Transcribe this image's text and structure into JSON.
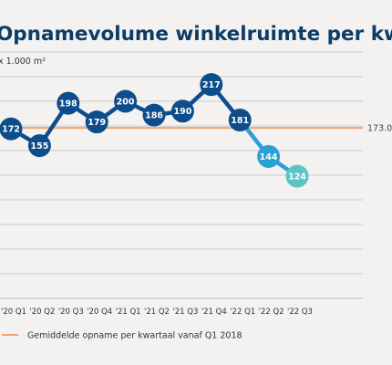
{
  "chart_data": {
    "type": "line",
    "title": "Opnamevolume winkelruimte per kwartaal",
    "unit_label": "x 1.000 m²",
    "categories": [
      "'20 Q1",
      "'20 Q2",
      "'20 Q3",
      "'20 Q4",
      "'21 Q1",
      "'21 Q2",
      "'21 Q3",
      "'21 Q4",
      "'22 Q1",
      "'22 Q2",
      "'22 Q3"
    ],
    "series": [
      {
        "values": [
          172,
          155,
          198,
          179,
          200,
          186,
          190,
          217,
          181,
          144,
          124
        ],
        "colors": [
          "#0e4d8c",
          "#0e4d8c",
          "#0e4d8c",
          "#0e4d8c",
          "#0e4d8c",
          "#0e4d8c",
          "#0e4d8c",
          "#0e4d8c",
          "#0e4d8c",
          "#2aa1d4",
          "#5cc4c4"
        ]
      }
    ],
    "reference_line": {
      "label": "Gemiddelde opname per kwartaal vanaf Q1 2018",
      "value_label": "173.0",
      "value": 173.0,
      "color": "#f5a36a"
    },
    "ylim": [
      0,
      250
    ],
    "grid": true,
    "grid_step": 25,
    "legend_position": "bottom-left",
    "line_colors": {
      "main": "#0e4d8c",
      "q2_2022": "#2aa1d4"
    }
  }
}
